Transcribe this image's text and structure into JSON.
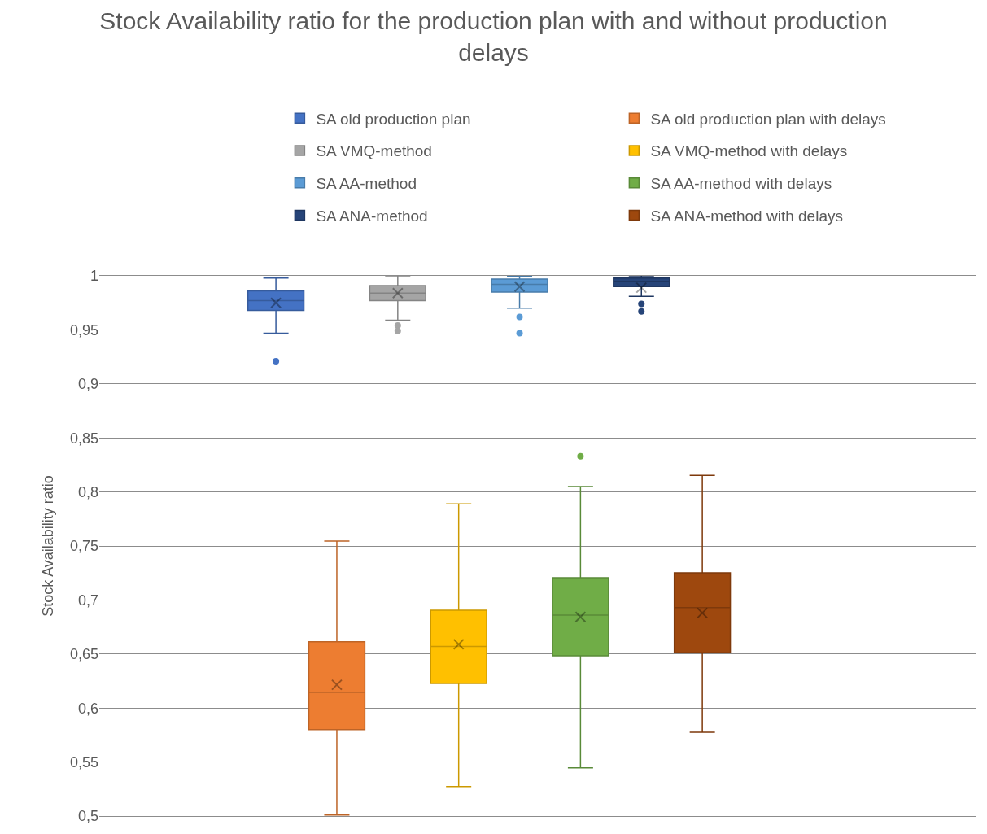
{
  "chart_data": {
    "type": "box",
    "title": "Stock Availability ratio for the production plan with and without production delays",
    "ylabel": "Stock Availability ratio",
    "categories": [
      null
    ],
    "ylim": [
      0.5,
      1
    ],
    "yticks": [
      {
        "value": 0.5,
        "label": "0,5"
      },
      {
        "value": 0.55,
        "label": "0,55"
      },
      {
        "value": 0.6,
        "label": "0,6"
      },
      {
        "value": 0.65,
        "label": "0,65"
      },
      {
        "value": 0.7,
        "label": "0,7"
      },
      {
        "value": 0.75,
        "label": "0,75"
      },
      {
        "value": 0.8,
        "label": "0,8"
      },
      {
        "value": 0.85,
        "label": "0,85"
      },
      {
        "value": 0.9,
        "label": "0,9"
      },
      {
        "value": 0.95,
        "label": "0,95"
      },
      {
        "value": 1,
        "label": "1"
      }
    ],
    "grid": "y",
    "legend": "top",
    "tick_labels": "y",
    "series": [
      {
        "name": "SA old production plan",
        "color": "#4472c4",
        "boxes": [
          {
            "low": 0.947,
            "q1": 0.968,
            "median": 0.977,
            "q3": 0.986,
            "high": 0.998,
            "mean": 0.975,
            "outliers": [
              0.921
            ]
          }
        ]
      },
      {
        "name": "SA old production plan with delays",
        "color": "#ed7d31",
        "boxes": [
          {
            "low": 0.501,
            "q1": 0.58,
            "median": 0.6145,
            "q3": 0.6614,
            "high": 0.7545,
            "mean": 0.6215
          }
        ]
      },
      {
        "name": "SA VMQ-method",
        "color": "#a5a5a5",
        "boxes": [
          {
            "low": 0.959,
            "q1": 0.977,
            "median": 0.984,
            "q3": 0.991,
            "high": 1.0,
            "mean": 0.984,
            "outliers": [
              0.954,
              0.949
            ]
          }
        ]
      },
      {
        "name": "SA VMQ-method with delays",
        "color": "#ffc000",
        "boxes": [
          {
            "low": 0.5273,
            "q1": 0.6227,
            "median": 0.657,
            "q3": 0.6905,
            "high": 0.789,
            "mean": 0.659
          }
        ]
      },
      {
        "name": "SA AA-method",
        "color": "#5b9bd5",
        "boxes": [
          {
            "low": 0.97,
            "q1": 0.985,
            "median": 0.992,
            "q3": 0.997,
            "high": 0.9995,
            "mean": 0.99,
            "outliers": [
              0.962,
              0.947
            ]
          }
        ]
      },
      {
        "name": "SA AA-method with delays",
        "color": "#70ad47",
        "boxes": [
          {
            "low": 0.5447,
            "q1": 0.6483,
            "median": 0.686,
            "q3": 0.7206,
            "high": 0.805,
            "mean": 0.6843,
            "outliers": [
              0.833
            ]
          }
        ]
      },
      {
        "name": "SA ANA-method",
        "color": "#264478",
        "boxes": [
          {
            "low": 0.981,
            "q1": 0.99,
            "median": 0.995,
            "q3": 0.998,
            "high": 1.0,
            "mean": 0.989,
            "outliers": [
              0.974,
              0.967
            ]
          }
        ]
      },
      {
        "name": "SA ANA-method with delays",
        "color": "#9e480e",
        "boxes": [
          {
            "low": 0.5776,
            "q1": 0.6511,
            "median": 0.693,
            "q3": 0.7251,
            "high": 0.8153,
            "mean": 0.688
          }
        ]
      }
    ]
  }
}
